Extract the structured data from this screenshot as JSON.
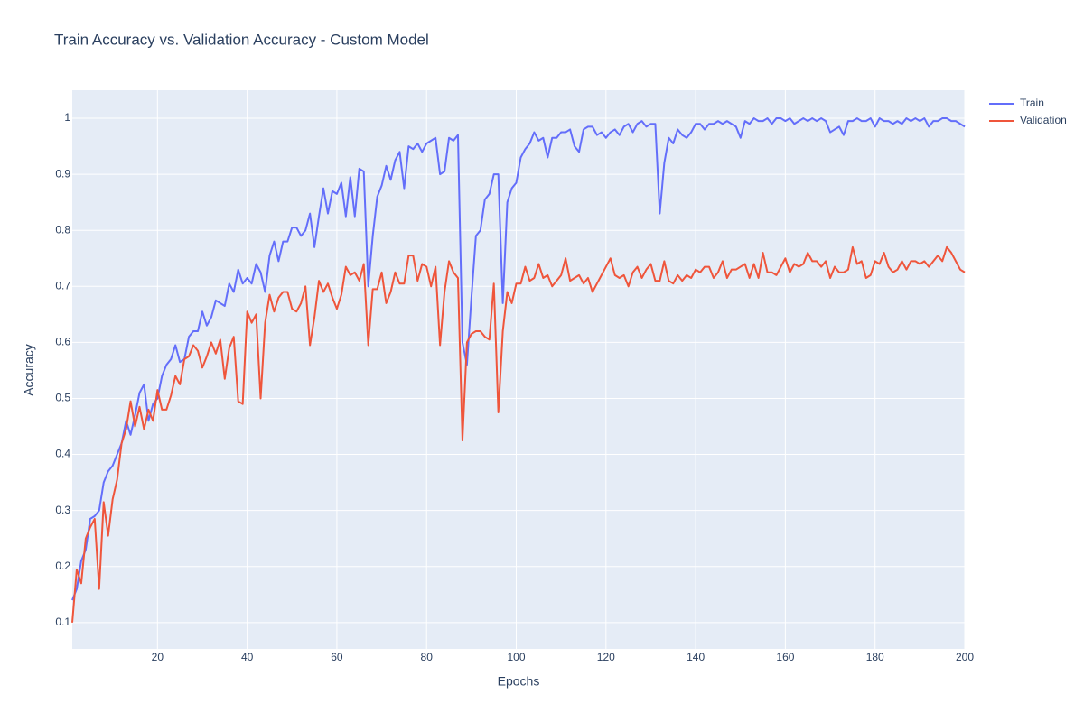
{
  "chart_data": {
    "type": "line",
    "title": "Train Accuracy vs. Validation Accuracy - Custom Model",
    "x_label": "Epochs",
    "y_label": "Accuracy",
    "x": [
      1,
      2,
      3,
      4,
      5,
      6,
      7,
      8,
      9,
      10,
      11,
      12,
      13,
      14,
      15,
      16,
      17,
      18,
      19,
      20,
      21,
      22,
      23,
      24,
      25,
      26,
      27,
      28,
      29,
      30,
      31,
      32,
      33,
      34,
      35,
      36,
      37,
      38,
      39,
      40,
      41,
      42,
      43,
      44,
      45,
      46,
      47,
      48,
      49,
      50,
      51,
      52,
      53,
      54,
      55,
      56,
      57,
      58,
      59,
      60,
      61,
      62,
      63,
      64,
      65,
      66,
      67,
      68,
      69,
      70,
      71,
      72,
      73,
      74,
      75,
      76,
      77,
      78,
      79,
      80,
      81,
      82,
      83,
      84,
      85,
      86,
      87,
      88,
      89,
      90,
      91,
      92,
      93,
      94,
      95,
      96,
      97,
      98,
      99,
      100,
      101,
      102,
      103,
      104,
      105,
      106,
      107,
      108,
      109,
      110,
      111,
      112,
      113,
      114,
      115,
      116,
      117,
      118,
      119,
      120,
      121,
      122,
      123,
      124,
      125,
      126,
      127,
      128,
      129,
      130,
      131,
      132,
      133,
      134,
      135,
      136,
      137,
      138,
      139,
      140,
      141,
      142,
      143,
      144,
      145,
      146,
      147,
      148,
      149,
      150,
      151,
      152,
      153,
      154,
      155,
      156,
      157,
      158,
      159,
      160,
      161,
      162,
      163,
      164,
      165,
      166,
      167,
      168,
      169,
      170,
      171,
      172,
      173,
      174,
      175,
      176,
      177,
      178,
      179,
      180,
      181,
      182,
      183,
      184,
      185,
      186,
      187,
      188,
      189,
      190,
      191,
      192,
      193,
      194,
      195,
      196,
      197,
      198,
      199,
      200
    ],
    "series": [
      {
        "name": "Train",
        "color": "#636efa",
        "values": [
          0.14,
          0.16,
          0.21,
          0.23,
          0.285,
          0.29,
          0.3,
          0.35,
          0.37,
          0.38,
          0.4,
          0.42,
          0.46,
          0.435,
          0.47,
          0.51,
          0.525,
          0.46,
          0.49,
          0.5,
          0.54,
          0.56,
          0.57,
          0.595,
          0.565,
          0.57,
          0.61,
          0.62,
          0.62,
          0.655,
          0.63,
          0.645,
          0.675,
          0.67,
          0.665,
          0.705,
          0.69,
          0.73,
          0.705,
          0.715,
          0.705,
          0.74,
          0.725,
          0.69,
          0.755,
          0.78,
          0.745,
          0.78,
          0.78,
          0.805,
          0.805,
          0.79,
          0.8,
          0.83,
          0.77,
          0.825,
          0.875,
          0.83,
          0.87,
          0.865,
          0.885,
          0.825,
          0.895,
          0.825,
          0.91,
          0.905,
          0.7,
          0.79,
          0.86,
          0.88,
          0.915,
          0.89,
          0.925,
          0.94,
          0.875,
          0.95,
          0.945,
          0.955,
          0.94,
          0.955,
          0.96,
          0.965,
          0.9,
          0.905,
          0.965,
          0.96,
          0.97,
          0.6,
          0.56,
          0.68,
          0.79,
          0.8,
          0.855,
          0.865,
          0.9,
          0.9,
          0.67,
          0.85,
          0.875,
          0.885,
          0.93,
          0.945,
          0.955,
          0.975,
          0.96,
          0.965,
          0.93,
          0.965,
          0.965,
          0.975,
          0.975,
          0.98,
          0.95,
          0.94,
          0.98,
          0.985,
          0.985,
          0.97,
          0.975,
          0.965,
          0.975,
          0.98,
          0.97,
          0.985,
          0.99,
          0.975,
          0.99,
          0.995,
          0.985,
          0.99,
          0.99,
          0.83,
          0.92,
          0.965,
          0.955,
          0.98,
          0.97,
          0.965,
          0.975,
          0.99,
          0.99,
          0.98,
          0.99,
          0.99,
          0.995,
          0.99,
          0.995,
          0.99,
          0.985,
          0.965,
          0.995,
          0.99,
          1.0,
          0.995,
          0.995,
          1.0,
          0.99,
          1.0,
          1.0,
          0.995,
          1.0,
          0.99,
          0.995,
          1.0,
          0.995,
          1.0,
          0.995,
          1.0,
          0.995,
          0.975,
          0.98,
          0.985,
          0.97,
          0.995,
          0.995,
          1.0,
          0.995,
          0.995,
          1.0,
          0.985,
          1.0,
          0.995,
          0.995,
          0.99,
          0.995,
          0.99,
          1.0,
          0.995,
          1.0,
          0.995,
          1.0,
          0.985,
          0.995,
          0.995,
          1.0,
          1.0,
          0.995,
          0.995,
          0.99,
          0.985
        ]
      },
      {
        "name": "Validation",
        "color": "#EF553B",
        "values": [
          0.1,
          0.195,
          0.17,
          0.25,
          0.27,
          0.285,
          0.16,
          0.315,
          0.255,
          0.32,
          0.355,
          0.42,
          0.445,
          0.495,
          0.45,
          0.485,
          0.445,
          0.48,
          0.46,
          0.515,
          0.48,
          0.48,
          0.505,
          0.54,
          0.525,
          0.57,
          0.575,
          0.595,
          0.585,
          0.555,
          0.575,
          0.6,
          0.58,
          0.605,
          0.535,
          0.59,
          0.61,
          0.495,
          0.49,
          0.655,
          0.635,
          0.65,
          0.5,
          0.635,
          0.685,
          0.655,
          0.68,
          0.69,
          0.69,
          0.66,
          0.655,
          0.67,
          0.7,
          0.595,
          0.645,
          0.71,
          0.69,
          0.705,
          0.68,
          0.66,
          0.685,
          0.735,
          0.72,
          0.725,
          0.71,
          0.74,
          0.595,
          0.695,
          0.695,
          0.725,
          0.67,
          0.69,
          0.725,
          0.705,
          0.705,
          0.755,
          0.755,
          0.71,
          0.74,
          0.735,
          0.7,
          0.735,
          0.595,
          0.69,
          0.745,
          0.725,
          0.715,
          0.425,
          0.6,
          0.615,
          0.62,
          0.62,
          0.61,
          0.605,
          0.705,
          0.475,
          0.62,
          0.69,
          0.67,
          0.705,
          0.705,
          0.735,
          0.71,
          0.715,
          0.74,
          0.715,
          0.72,
          0.7,
          0.71,
          0.72,
          0.75,
          0.71,
          0.715,
          0.72,
          0.705,
          0.715,
          0.69,
          0.705,
          0.72,
          0.735,
          0.75,
          0.72,
          0.715,
          0.72,
          0.7,
          0.725,
          0.735,
          0.715,
          0.73,
          0.74,
          0.71,
          0.71,
          0.745,
          0.71,
          0.705,
          0.72,
          0.71,
          0.72,
          0.715,
          0.73,
          0.725,
          0.735,
          0.735,
          0.715,
          0.725,
          0.745,
          0.715,
          0.73,
          0.73,
          0.735,
          0.74,
          0.715,
          0.74,
          0.715,
          0.76,
          0.725,
          0.725,
          0.72,
          0.735,
          0.75,
          0.725,
          0.74,
          0.735,
          0.74,
          0.76,
          0.745,
          0.745,
          0.735,
          0.745,
          0.715,
          0.735,
          0.725,
          0.725,
          0.73,
          0.77,
          0.74,
          0.745,
          0.715,
          0.72,
          0.745,
          0.74,
          0.76,
          0.735,
          0.725,
          0.73,
          0.745,
          0.73,
          0.745,
          0.745,
          0.74,
          0.745,
          0.735,
          0.745,
          0.755,
          0.745,
          0.77,
          0.76,
          0.745,
          0.73,
          0.725
        ]
      }
    ],
    "xlim": [
      1,
      200
    ],
    "xticks": [
      20,
      40,
      60,
      80,
      100,
      120,
      140,
      160,
      180,
      200
    ],
    "ylim": [
      0.053,
      1.05
    ],
    "yticks": [
      0.1,
      0.2,
      0.3,
      0.4,
      0.5,
      0.6,
      0.7,
      0.8,
      0.9,
      1
    ],
    "grid": true,
    "legend": "right"
  }
}
